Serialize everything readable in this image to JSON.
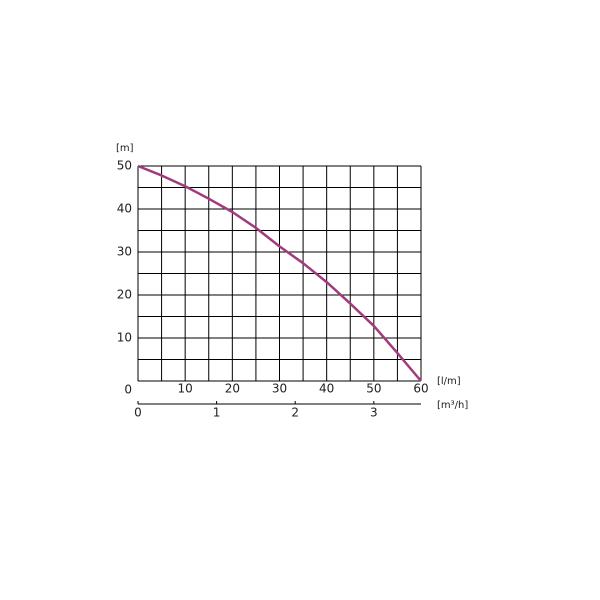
{
  "chart_data": {
    "type": "line",
    "ylabel": "[m]",
    "xlabel": "[l/m]",
    "x2label": "[m³/h]",
    "x": [
      0,
      5,
      10,
      15,
      20,
      25,
      30,
      35,
      40,
      45,
      50,
      55,
      60
    ],
    "series": [
      {
        "color": "#a23a7e",
        "values": [
          50,
          47.8,
          45.3,
          42.4,
          39.3,
          35.6,
          31.3,
          27.4,
          23,
          18,
          12.8,
          6.5,
          0
        ]
      }
    ],
    "xlim": [
      0,
      60
    ],
    "xticks": [
      10,
      20,
      30,
      40,
      50,
      60
    ],
    "xminorticks": [
      0,
      5,
      15,
      25,
      35,
      45,
      55
    ],
    "ylim": [
      0,
      50
    ],
    "yticks": [
      0,
      10,
      20,
      30,
      40,
      50
    ],
    "yminorticks": [
      5,
      15,
      25,
      35,
      45
    ],
    "x2lim": [
      0,
      3.6
    ],
    "x2ticks": [
      0,
      1,
      2,
      3
    ],
    "grid": true
  }
}
